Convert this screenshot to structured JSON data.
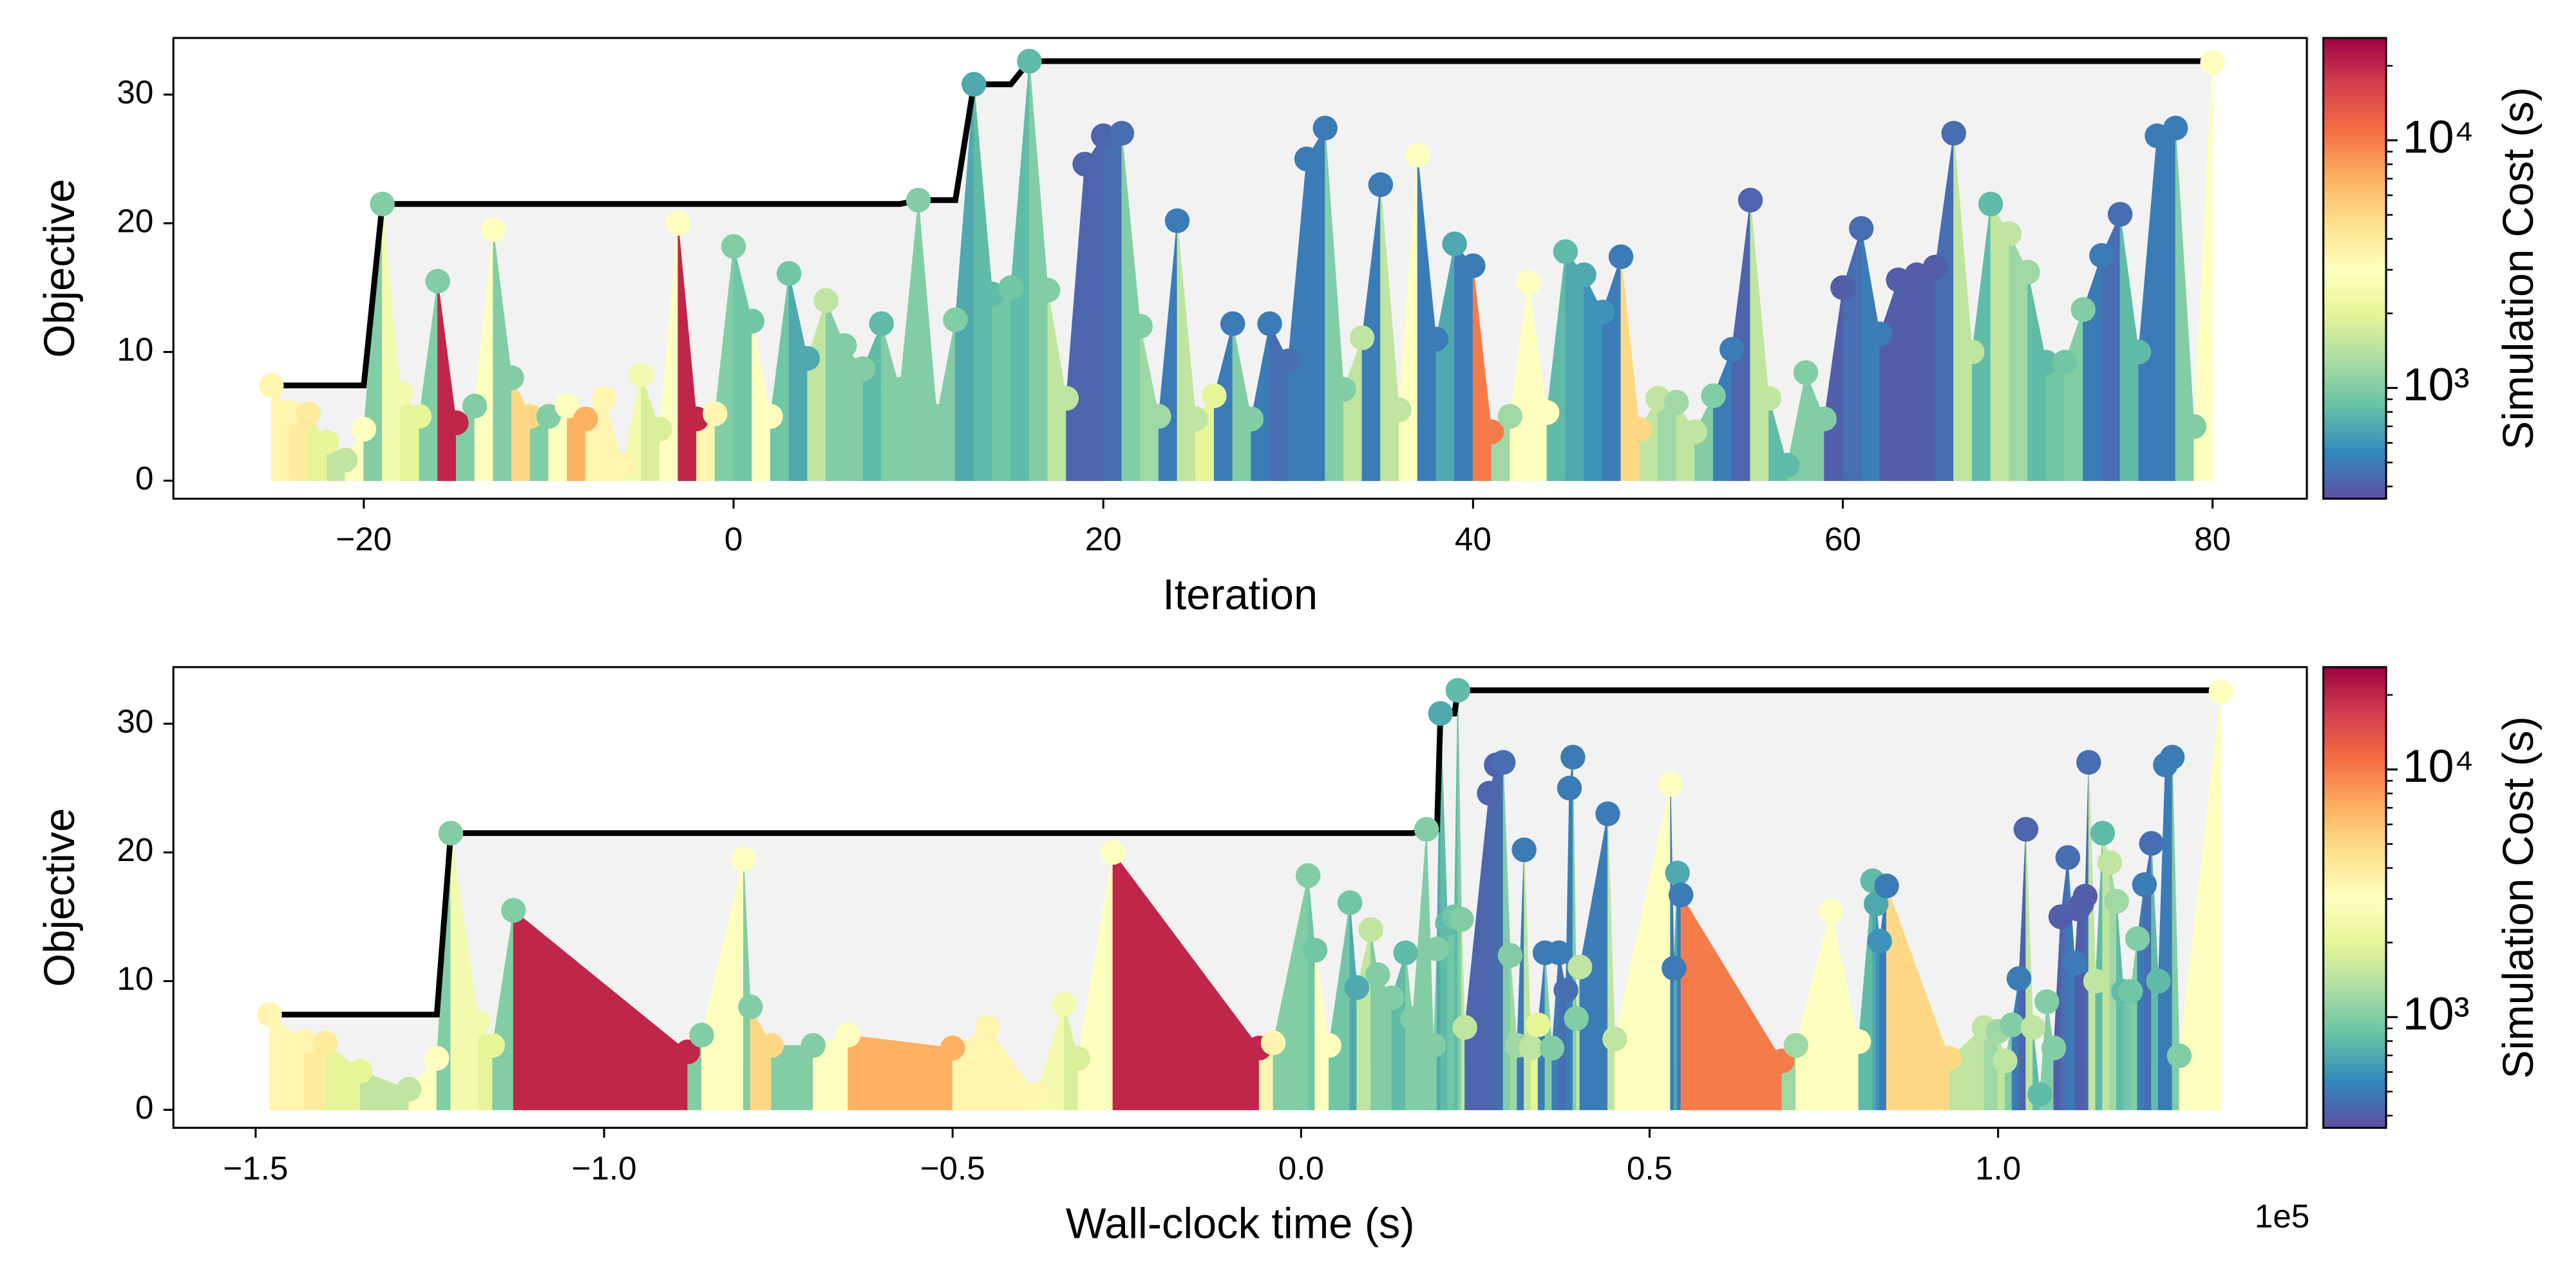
{
  "chart_data": [
    {
      "type": "area",
      "x_label": "Iteration",
      "y_label": "Objective",
      "colorbar_label": "Simulation Cost (s)",
      "colormap": "Spectral_r",
      "x": [
        -25,
        -24,
        -23,
        -22,
        -21,
        -20,
        -19,
        -18,
        -17,
        -16,
        -15,
        -14,
        -13,
        -12,
        -11,
        -10,
        -9,
        -8,
        -7,
        -6,
        -5,
        -4,
        -3,
        -2,
        -1,
        0,
        1,
        2,
        3,
        4,
        5,
        6,
        7,
        8,
        9,
        10,
        11,
        12,
        13,
        14,
        15,
        16,
        17,
        18,
        19,
        20,
        21,
        22,
        23,
        24,
        25,
        26,
        27,
        28,
        29,
        30,
        31,
        32,
        33,
        34,
        35,
        36,
        37,
        38,
        39,
        40,
        41,
        42,
        43,
        44,
        45,
        46,
        47,
        48,
        49,
        50,
        51,
        52,
        53,
        54,
        55,
        56,
        57,
        58,
        59,
        60,
        61,
        62,
        63,
        64,
        65,
        66,
        67,
        68,
        69,
        70,
        71,
        72,
        73,
        74,
        75,
        76,
        77,
        78,
        79,
        80
      ],
      "values": [
        7.4,
        5.3,
        5.2,
        3.0,
        1.6,
        4.0,
        21.5,
        6.8,
        5.0,
        15.5,
        4.5,
        5.8,
        19.5,
        8.0,
        5.0,
        5.0,
        5.8,
        4.8,
        6.4,
        1.2,
        8.2,
        4.0,
        20.0,
        4.8,
        5.2,
        18.2,
        12.4,
        5.0,
        16.1,
        9.5,
        14.0,
        10.5,
        8.7,
        12.2,
        7.1,
        21.8,
        5.0,
        12.5,
        30.8,
        14.5,
        15.0,
        32.6,
        14.8,
        6.4,
        24.6,
        26.8,
        27.0,
        12.0,
        5.0,
        20.2,
        4.8,
        6.6,
        12.2,
        4.8,
        12.2,
        9.3,
        25.0,
        27.4,
        7.1,
        11.1,
        23.0,
        5.5,
        25.3,
        11.0,
        18.4,
        16.7,
        3.8,
        5.0,
        15.4,
        5.3,
        17.8,
        16.0,
        13.1,
        17.4,
        4.0,
        6.4,
        6.1,
        3.8,
        6.6,
        10.2,
        21.8,
        6.4,
        1.2,
        8.4,
        4.8,
        15.0,
        19.6,
        11.4,
        15.6,
        16.0,
        16.6,
        27.0,
        10.0,
        21.5,
        19.2,
        16.2,
        9.2,
        9.2,
        13.3,
        17.5,
        20.7,
        10.0,
        26.8,
        27.4,
        4.2,
        32.5
      ],
      "cost": [
        3500,
        3500,
        4000,
        2000,
        1500,
        3000,
        1000,
        2500,
        2000,
        1000,
        20000,
        1000,
        3000,
        1000,
        5000,
        1000,
        3000,
        7000,
        3500,
        3500,
        2500,
        1800,
        3000,
        20000,
        3500,
        1000,
        900,
        3000,
        900,
        700,
        1500,
        1000,
        1000,
        800,
        1000,
        1000,
        1000,
        1000,
        700,
        800,
        900,
        800,
        1000,
        1500,
        420,
        420,
        450,
        1000,
        1200,
        500,
        1500,
        2000,
        500,
        1000,
        500,
        450,
        500,
        500,
        1000,
        1500,
        500,
        1500,
        3000,
        500,
        700,
        500,
        10000,
        1200,
        3000,
        3000,
        800,
        700,
        600,
        500,
        5000,
        1500,
        1200,
        1500,
        1000,
        500,
        420,
        1500,
        800,
        1000,
        1000,
        400,
        450,
        500,
        400,
        400,
        400,
        450,
        1500,
        800,
        1500,
        1200,
        800,
        900,
        1000,
        500,
        450,
        800,
        500,
        500,
        1000,
        3000
      ],
      "xlim": [
        -30.3,
        85.1
      ],
      "ylim": [
        -1.4,
        34.4
      ],
      "xticks": [
        {
          "value": -20,
          "label": "−20"
        },
        0,
        20,
        40,
        60,
        80
      ],
      "yticks": [
        0,
        10,
        20,
        30
      ],
      "clim": [
        357,
        25900
      ],
      "cticks": [
        {
          "value": 1000,
          "label": "10³"
        },
        {
          "value": 10000,
          "label": "10⁴"
        }
      ],
      "cminor_ticks": [
        400,
        500,
        600,
        700,
        800,
        900,
        2000,
        3000,
        4000,
        5000,
        6000,
        7000,
        8000,
        9000,
        20000
      ]
    },
    {
      "type": "area",
      "x_label": "Wall-clock time (s)",
      "x_offset_label": "1e5",
      "y_label": "Objective",
      "colorbar_label": "Simulation Cost (s)",
      "colormap": "Spectral_r",
      "x": [
        -148000,
        -143000,
        -140000,
        -135000,
        -128000,
        -124000,
        -122000,
        -118000,
        -116000,
        -113000,
        -88000,
        -86000,
        -80000,
        -79000,
        -76000,
        -70000,
        -65000,
        -50000,
        -45000,
        -38000,
        -34000,
        -32000,
        -27000,
        -6000,
        -4000,
        1000,
        2000,
        4000,
        7000,
        8000,
        10000,
        11000,
        13000,
        15000,
        16000,
        18000,
        19000,
        19500,
        20000,
        21000,
        22000,
        22500,
        23000,
        23500,
        27000,
        28000,
        29000,
        30000,
        31000,
        32000,
        33000,
        34000,
        35000,
        36000,
        37000,
        38000,
        38500,
        39000,
        39500,
        40000,
        44000,
        45000,
        53000,
        53500,
        54000,
        54500,
        69000,
        71000,
        76000,
        80000,
        82000,
        82500,
        83000,
        84000,
        93000,
        98000,
        100000,
        101000,
        102000,
        103000,
        104000,
        105000,
        106000,
        107000,
        108000,
        109000,
        110000,
        111000,
        111500,
        112000,
        112500,
        113000,
        114000,
        115000,
        116000,
        117000,
        118000,
        119000,
        120000,
        121000,
        122000,
        123000,
        124000,
        125000,
        126000,
        132000
      ],
      "values": [
        7.4,
        5.3,
        5.2,
        3.0,
        1.6,
        4.0,
        21.5,
        6.8,
        5.0,
        15.5,
        4.5,
        5.8,
        19.5,
        8.0,
        5.0,
        5.0,
        5.8,
        4.8,
        6.4,
        1.2,
        8.2,
        4.0,
        20.0,
        4.8,
        5.2,
        18.2,
        12.4,
        5.0,
        16.1,
        9.5,
        14.0,
        10.5,
        8.7,
        12.2,
        7.1,
        21.8,
        5.0,
        12.5,
        30.8,
        14.5,
        15.0,
        32.6,
        14.8,
        6.4,
        24.6,
        26.8,
        27.0,
        12.0,
        5.0,
        20.2,
        4.8,
        6.6,
        12.2,
        4.8,
        12.2,
        9.3,
        25.0,
        27.4,
        7.1,
        11.1,
        23.0,
        5.5,
        25.3,
        11.0,
        18.4,
        16.7,
        3.8,
        5.0,
        15.4,
        5.3,
        17.8,
        16.0,
        13.1,
        17.4,
        4.0,
        6.4,
        6.1,
        3.8,
        6.6,
        10.2,
        21.8,
        6.4,
        1.2,
        8.4,
        4.8,
        15.0,
        19.6,
        11.4,
        15.6,
        16.0,
        16.6,
        27.0,
        10.0,
        21.5,
        19.2,
        16.2,
        9.2,
        9.2,
        13.3,
        17.5,
        20.7,
        10.0,
        26.8,
        27.4,
        4.2,
        32.5
      ],
      "cost": [
        3500,
        3500,
        4000,
        2000,
        1500,
        3000,
        1000,
        2500,
        2000,
        1000,
        20000,
        1000,
        3000,
        1000,
        5000,
        1000,
        3000,
        7000,
        3500,
        3500,
        2500,
        1800,
        3000,
        20000,
        3500,
        1000,
        900,
        3000,
        900,
        700,
        1500,
        1000,
        1000,
        800,
        1000,
        1000,
        1000,
        1000,
        700,
        800,
        900,
        800,
        1000,
        1500,
        420,
        420,
        450,
        1000,
        1200,
        500,
        1500,
        2000,
        500,
        1000,
        500,
        450,
        500,
        500,
        1000,
        1500,
        500,
        1500,
        3000,
        500,
        700,
        500,
        10000,
        1200,
        3000,
        3000,
        800,
        700,
        600,
        500,
        5000,
        1500,
        1200,
        1500,
        1000,
        500,
        420,
        1500,
        800,
        1000,
        1000,
        400,
        450,
        500,
        400,
        400,
        400,
        450,
        1500,
        800,
        1500,
        1200,
        800,
        900,
        1000,
        500,
        450,
        800,
        500,
        500,
        1000,
        3000
      ],
      "xlim": [
        -161800,
        144300
      ],
      "ylim": [
        -1.4,
        34.4
      ],
      "xticks": [
        {
          "value": -150000,
          "label": "−1.5"
        },
        {
          "value": -100000,
          "label": "−1.0"
        },
        {
          "value": -50000,
          "label": "−0.5"
        },
        {
          "value": 0,
          "label": "0.0"
        },
        {
          "value": 50000,
          "label": "0.5"
        },
        {
          "value": 100000,
          "label": "1.0"
        }
      ],
      "yticks": [
        0,
        10,
        20,
        30
      ],
      "clim": [
        357,
        25900
      ],
      "cticks": [
        {
          "value": 1000,
          "label": "10³"
        },
        {
          "value": 10000,
          "label": "10⁴"
        }
      ],
      "cminor_ticks": [
        400,
        500,
        600,
        700,
        800,
        900,
        2000,
        3000,
        4000,
        5000,
        6000,
        7000,
        8000,
        9000,
        20000
      ]
    }
  ]
}
